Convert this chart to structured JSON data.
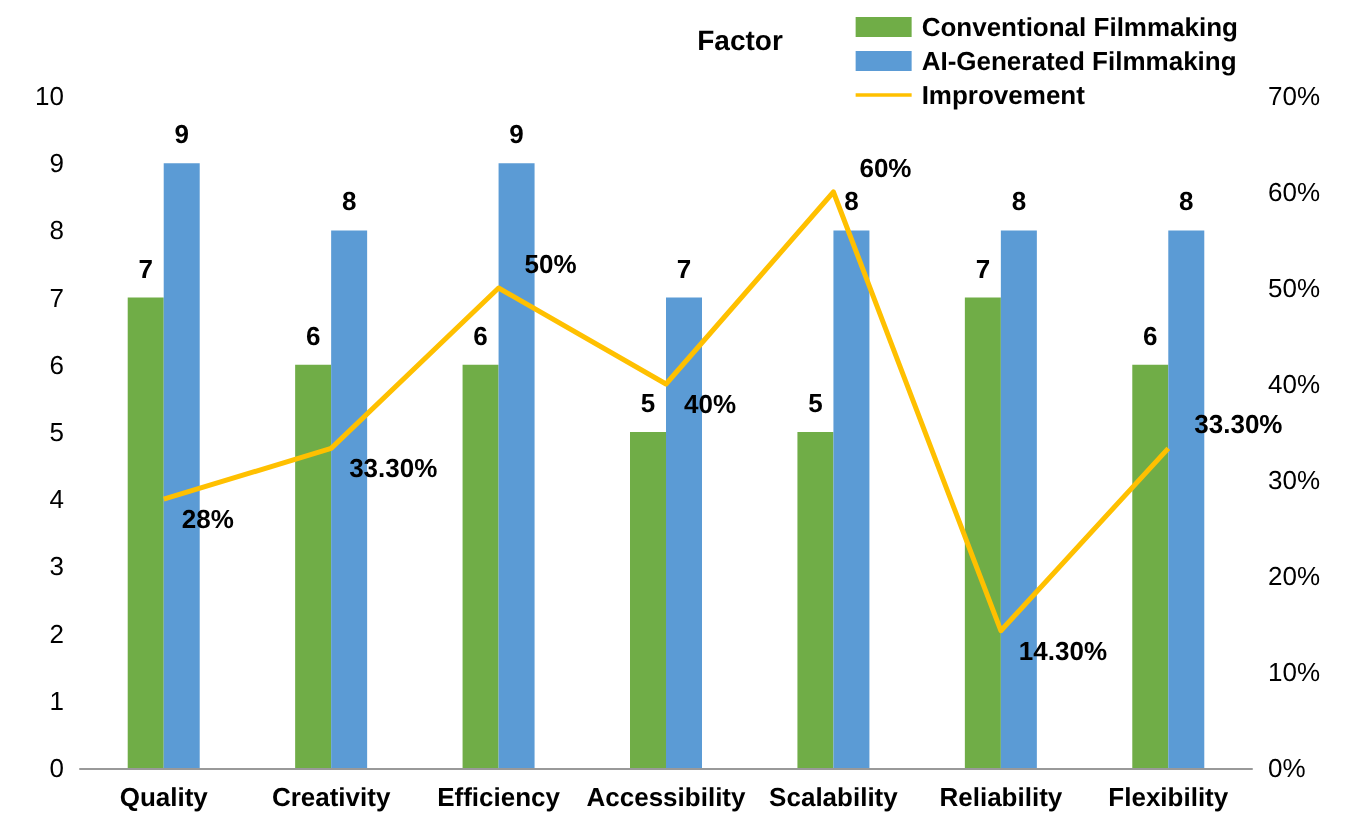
{
  "chart_data": {
    "type": "bar",
    "title": "Factor",
    "categories": [
      "Quality",
      "Creativity",
      "Efficiency",
      "Accessibility",
      "Scalability",
      "Reliability",
      "Flexibility"
    ],
    "series": [
      {
        "name": "Conventional Filmmaking",
        "color": "#70ad47",
        "values": [
          7,
          6,
          6,
          5,
          5,
          7,
          6
        ]
      },
      {
        "name": "AI-Generated Filmmaking",
        "color": "#5b9bd5",
        "values": [
          9,
          8,
          9,
          7,
          8,
          8,
          8
        ]
      },
      {
        "name": "Improvement",
        "type": "line",
        "axis": "y2",
        "color": "#ffc000",
        "marker": "none",
        "values": [
          28,
          33.3,
          50,
          40,
          60,
          14.3,
          33.3
        ],
        "value_labels": [
          "28%",
          "33.30%",
          "50%",
          "40%",
          "60%",
          "14.30%",
          "33.30%"
        ]
      }
    ],
    "ylim": [
      0,
      10
    ],
    "yticks": [
      0,
      1,
      2,
      3,
      4,
      5,
      6,
      7,
      8,
      9,
      10
    ],
    "y2lim": [
      0,
      70
    ],
    "y2ticks": [
      {
        "value": 0,
        "label": "0%"
      },
      {
        "value": 10,
        "label": "10%"
      },
      {
        "value": 20,
        "label": "20%"
      },
      {
        "value": 30,
        "label": "30%"
      },
      {
        "value": 40,
        "label": "40%"
      },
      {
        "value": 50,
        "label": "50%"
      },
      {
        "value": 60,
        "label": "60%"
      },
      {
        "value": 70,
        "label": "70%"
      }
    ],
    "data_labels": true,
    "legend": "top right"
  }
}
